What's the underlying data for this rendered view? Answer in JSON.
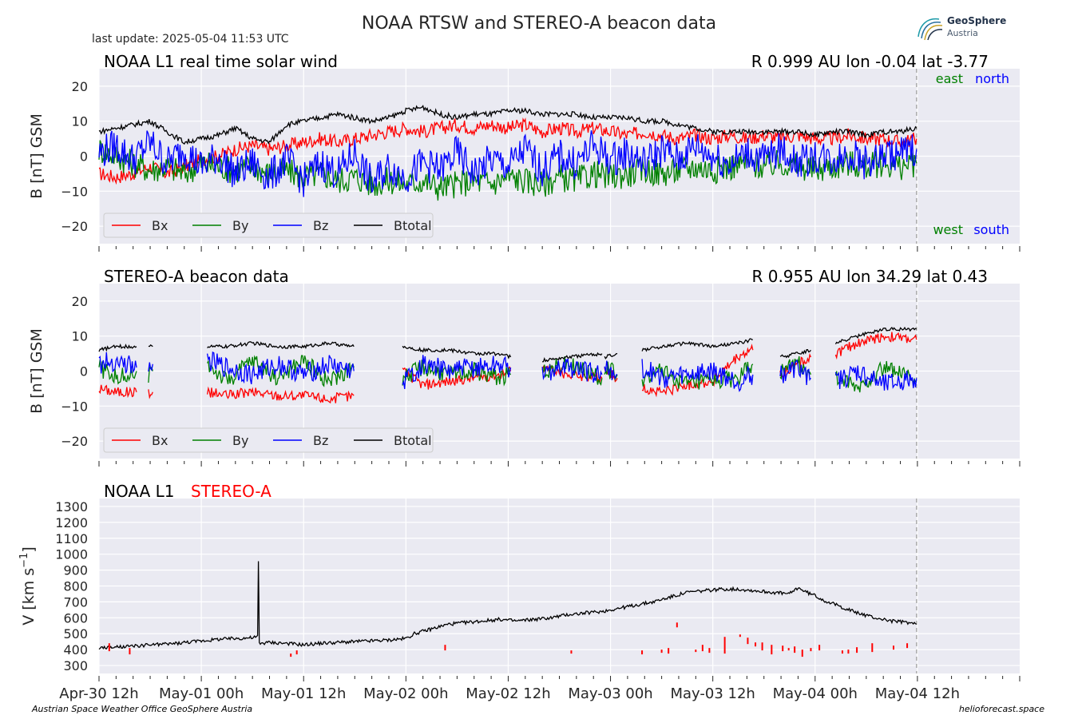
{
  "header": {
    "title": "NOAA RTSW and STEREO-A beacon data",
    "last_update": "last update: 2025-05-04 11:53 UTC",
    "logo_name": "GeoSphere",
    "logo_sub": "Austria"
  },
  "footer": {
    "left": "Austrian Space Weather Office   GeoSphere Austria",
    "right": "helioforecast.space"
  },
  "colors": {
    "bx": "#ff0000",
    "by": "#008000",
    "bz": "#0000ff",
    "bt": "#000000",
    "axes_bg": "#eaeaf2",
    "grid": "#ffffff",
    "now_line": "#a0a0a0"
  },
  "chart_data": [
    {
      "type": "line",
      "title": "NOAA L1 real time solar wind",
      "position_info": "R 0.999 AU   lon -0.04  lat -3.77",
      "ylabel": "B [nT] GSM",
      "ylim": [
        -25,
        25
      ],
      "yticks": [
        20,
        10,
        0,
        -10,
        -20
      ],
      "ytick_labels": [
        "20",
        "10",
        "0",
        "−10",
        "−20"
      ],
      "xlim_hours": [
        0,
        108
      ],
      "now_hour": 95.9,
      "corner_labels": {
        "east": "east",
        "north": "north",
        "west": "west",
        "south": "south"
      },
      "legend": [
        "Bx",
        "By",
        "Bz",
        "Btotal"
      ],
      "series": [
        {
          "name": "Bx",
          "key": "bx",
          "x_hours": [
            0,
            2,
            4,
            6,
            8,
            10,
            12,
            14,
            16,
            18,
            20,
            22,
            24,
            26,
            28,
            30,
            32,
            34,
            36,
            38,
            40,
            42,
            44,
            46,
            48,
            50,
            52,
            54,
            56,
            58,
            60,
            62,
            64,
            66,
            68,
            70,
            72,
            74,
            76,
            78,
            80,
            82,
            84,
            86,
            88,
            90,
            92,
            94,
            95.9
          ],
          "values": [
            -5,
            -6,
            -5,
            -3,
            -5,
            -3,
            -1,
            0,
            2,
            3,
            2,
            3,
            4,
            5,
            4,
            5,
            6,
            7,
            8,
            7,
            8,
            9,
            8,
            9,
            8,
            9,
            7,
            8,
            7,
            8,
            7,
            6,
            7,
            6,
            5,
            6,
            5,
            6,
            5,
            6,
            5,
            6,
            5,
            5,
            6,
            5,
            5,
            4,
            5
          ]
        },
        {
          "name": "By",
          "key": "by",
          "x_hours": [
            0,
            2,
            4,
            6,
            8,
            10,
            12,
            14,
            16,
            18,
            20,
            22,
            24,
            26,
            28,
            30,
            32,
            34,
            36,
            38,
            40,
            42,
            44,
            46,
            48,
            50,
            52,
            54,
            56,
            58,
            60,
            62,
            64,
            66,
            68,
            70,
            72,
            74,
            76,
            78,
            80,
            82,
            84,
            86,
            88,
            90,
            92,
            94,
            95.9
          ],
          "values": [
            2,
            0,
            -2,
            -4,
            -3,
            -5,
            -2,
            -3,
            -4,
            -3,
            -5,
            -4,
            -6,
            -5,
            -7,
            -6,
            -8,
            -7,
            -8,
            -7,
            -9,
            -8,
            -7,
            -8,
            -6,
            -7,
            -8,
            -6,
            -7,
            -5,
            -6,
            -5,
            -4,
            -5,
            -4,
            -3,
            -4,
            -3,
            -2,
            -3,
            -2,
            -3,
            -4,
            -3,
            -2,
            -3,
            -2,
            -3,
            -2
          ]
        },
        {
          "name": "Bz",
          "key": "bz",
          "x_hours": [
            0,
            2,
            4,
            6,
            8,
            10,
            12,
            14,
            16,
            18,
            20,
            22,
            24,
            26,
            28,
            30,
            32,
            34,
            36,
            38,
            40,
            42,
            44,
            46,
            48,
            50,
            52,
            54,
            56,
            58,
            60,
            62,
            64,
            66,
            68,
            70,
            72,
            74,
            76,
            78,
            80,
            82,
            84,
            86,
            88,
            90,
            92,
            94,
            95.9
          ],
          "values": [
            1,
            3,
            -1,
            4,
            -2,
            2,
            -3,
            0,
            -5,
            -2,
            -6,
            -1,
            -7,
            -2,
            -5,
            1,
            -8,
            -3,
            -6,
            -2,
            -4,
            1,
            -5,
            -1,
            -3,
            2,
            -4,
            0,
            -2,
            3,
            -1,
            1,
            -2,
            2,
            -1,
            3,
            0,
            -2,
            1,
            -1,
            2,
            -2,
            0,
            -1,
            1,
            -2,
            0,
            1,
            2
          ]
        },
        {
          "name": "Btotal",
          "key": "bt",
          "x_hours": [
            0,
            2,
            4,
            6,
            8,
            10,
            12,
            14,
            16,
            18,
            20,
            22,
            24,
            26,
            28,
            30,
            32,
            34,
            36,
            38,
            40,
            42,
            44,
            46,
            48,
            50,
            52,
            54,
            56,
            58,
            60,
            62,
            64,
            66,
            68,
            70,
            72,
            74,
            76,
            78,
            80,
            82,
            84,
            86,
            88,
            90,
            92,
            94,
            95.9
          ],
          "values": [
            7,
            8,
            9,
            10,
            7,
            4,
            5,
            6,
            8,
            5,
            4,
            9,
            10,
            11,
            12,
            11,
            10,
            11,
            13,
            14,
            12,
            11,
            12,
            12,
            13,
            13,
            12,
            12,
            12,
            11,
            11,
            11,
            10,
            10,
            9,
            8,
            7,
            7,
            7,
            7,
            7,
            7,
            6,
            7,
            7,
            6,
            7,
            7,
            8
          ]
        }
      ]
    },
    {
      "type": "line",
      "title": "STEREO-A beacon data",
      "position_info": "R 0.955 AU   lon 34.29  lat 0.43",
      "ylabel": "B [nT] GSM",
      "ylim": [
        -25,
        25
      ],
      "yticks": [
        20,
        10,
        0,
        -10,
        -20
      ],
      "ytick_labels": [
        "20",
        "10",
        "0",
        "−10",
        "−20"
      ],
      "xlim_hours": [
        0,
        108
      ],
      "now_hour": 95.9,
      "legend": [
        "Bx",
        "By",
        "Bz",
        "Btotal"
      ],
      "segments": [
        {
          "x_hours": [
            0,
            2,
            4.4
          ],
          "bx": [
            -5,
            -6,
            -6
          ],
          "by": [
            1,
            -2,
            0
          ],
          "bz": [
            2,
            3,
            1
          ],
          "bt": [
            6,
            7,
            7
          ]
        },
        {
          "x_hours": [
            5.8,
            6.3
          ],
          "bx": [
            -6,
            -6
          ],
          "by": [
            -1,
            0
          ],
          "bz": [
            1,
            2
          ],
          "bt": [
            7,
            7
          ]
        },
        {
          "x_hours": [
            12.7,
            15,
            18,
            21,
            24,
            27,
            29.9
          ],
          "bx": [
            -6,
            -7,
            -6,
            -7,
            -7,
            -8,
            -7
          ],
          "by": [
            2,
            -3,
            3,
            -2,
            3,
            -3,
            1
          ],
          "bz": [
            3,
            1,
            -1,
            2,
            -1,
            2,
            0
          ],
          "bt": [
            7,
            7,
            8,
            7,
            7,
            8,
            7
          ]
        },
        {
          "x_hours": [
            35.6,
            38,
            41,
            44,
            47,
            48.3
          ],
          "bx": [
            0,
            -4,
            -3,
            -2,
            -1,
            0
          ],
          "by": [
            -2,
            1,
            -1,
            0,
            -2,
            -1
          ],
          "bz": [
            -3,
            2,
            0,
            1,
            2,
            1
          ],
          "bt": [
            7,
            6,
            6,
            5,
            5,
            4
          ]
        },
        {
          "x_hours": [
            52,
            55,
            59
          ],
          "bx": [
            1,
            -1,
            -2
          ],
          "by": [
            0,
            2,
            -2
          ],
          "bz": [
            -1,
            1,
            -1
          ],
          "bt": [
            3,
            4,
            5
          ]
        },
        {
          "x_hours": [
            59.3,
            60.8
          ],
          "bx": [
            0,
            -2
          ],
          "by": [
            1,
            -1
          ],
          "bz": [
            2,
            -1
          ],
          "bt": [
            4,
            5
          ]
        },
        {
          "x_hours": [
            63.7,
            66,
            69,
            72,
            75,
            76.7
          ],
          "bx": [
            -5,
            -6,
            -4,
            -3,
            4,
            6
          ],
          "by": [
            -3,
            0,
            -4,
            -3,
            -2,
            2
          ],
          "bz": [
            1,
            -2,
            -1,
            0,
            -3,
            -1
          ],
          "bt": [
            6,
            7,
            8,
            7,
            8,
            9
          ]
        },
        {
          "x_hours": [
            79.9,
            82,
            83.5
          ],
          "bx": [
            -1,
            2,
            4
          ],
          "by": [
            0,
            2,
            -1
          ],
          "bz": [
            -1,
            1,
            -2
          ],
          "bt": [
            4,
            5,
            6
          ]
        },
        {
          "x_hours": [
            86.4,
            89,
            92,
            95.9
          ],
          "bx": [
            5,
            8,
            10,
            9
          ],
          "by": [
            -2,
            -5,
            1,
            -3
          ],
          "bz": [
            -3,
            0,
            -4,
            -2
          ],
          "bt": [
            8,
            10,
            12,
            12
          ]
        }
      ]
    },
    {
      "type": "line",
      "title_left": "NOAA L1",
      "title_right": "STEREO-A",
      "ylabel": "V [km s",
      "ylabel_sup": "−1",
      "ylabel_end": "]",
      "ylim": [
        250,
        1350
      ],
      "yticks": [
        1300,
        1200,
        1100,
        1000,
        900,
        800,
        700,
        600,
        500,
        400,
        300
      ],
      "ytick_labels": [
        "1300",
        "1200",
        "1100",
        "1000",
        "900",
        "800",
        "700",
        "600",
        "500",
        "400",
        "300"
      ],
      "xlim_hours": [
        0,
        108
      ],
      "now_hour": 95.9,
      "x_tick_hours": [
        0,
        12,
        24,
        36,
        48,
        60,
        72,
        84,
        96
      ],
      "x_tick_labels": [
        "Apr-30 12h",
        "May-01 00h",
        "May-01 12h",
        "May-02 00h",
        "May-02 12h",
        "May-03 00h",
        "May-03 12h",
        "May-04 00h",
        "May-04 12h"
      ],
      "series": [
        {
          "name": "NOAA L1",
          "key": "bt",
          "x_hours": [
            0,
            2,
            4,
            6,
            8,
            10,
            12,
            14,
            16,
            18,
            18.6,
            18.7,
            18.8,
            20,
            22,
            24,
            26,
            28,
            30,
            32,
            34,
            36,
            37,
            39,
            41,
            43,
            45,
            47,
            49,
            51,
            53,
            55,
            57,
            59,
            61,
            63,
            65,
            67,
            69,
            71,
            73,
            75,
            77,
            79,
            81,
            82,
            83,
            84,
            85,
            87,
            89,
            91,
            93,
            95,
            95.9
          ],
          "values": [
            410,
            415,
            420,
            430,
            435,
            445,
            455,
            465,
            470,
            475,
            480,
            950,
            440,
            445,
            440,
            430,
            440,
            445,
            450,
            455,
            460,
            470,
            500,
            530,
            560,
            570,
            580,
            590,
            580,
            590,
            600,
            620,
            630,
            640,
            660,
            680,
            700,
            730,
            760,
            770,
            780,
            780,
            770,
            760,
            750,
            790,
            760,
            740,
            710,
            670,
            630,
            600,
            580,
            570,
            560
          ]
        },
        {
          "name": "STEREO-A",
          "key": "bx",
          "bars": [
            [
              1.2,
              390,
              440
            ],
            [
              3.6,
              370,
              410
            ],
            [
              22.5,
              355,
              375
            ],
            [
              23.2,
              370,
              395
            ],
            [
              40.6,
              395,
              430
            ],
            [
              55.4,
              375,
              395
            ],
            [
              63.7,
              370,
              395
            ],
            [
              66.0,
              380,
              400
            ],
            [
              66.8,
              375,
              410
            ],
            [
              67.8,
              540,
              570
            ],
            [
              70.0,
              385,
              400
            ],
            [
              70.8,
              390,
              430
            ],
            [
              71.6,
              380,
              410
            ],
            [
              73.4,
              375,
              480
            ],
            [
              75.2,
              480,
              495
            ],
            [
              76.1,
              435,
              475
            ],
            [
              77.0,
              420,
              445
            ],
            [
              77.8,
              395,
              445
            ],
            [
              78.9,
              370,
              430
            ],
            [
              80.2,
              390,
              425
            ],
            [
              80.9,
              395,
              410
            ],
            [
              81.6,
              380,
              420
            ],
            [
              82.5,
              355,
              400
            ],
            [
              83.5,
              390,
              410
            ],
            [
              84.5,
              395,
              430
            ],
            [
              87.2,
              375,
              395
            ],
            [
              87.9,
              375,
              400
            ],
            [
              88.9,
              380,
              415
            ],
            [
              90.7,
              385,
              440
            ],
            [
              93.2,
              400,
              425
            ],
            [
              94.8,
              410,
              440
            ]
          ]
        }
      ]
    }
  ]
}
